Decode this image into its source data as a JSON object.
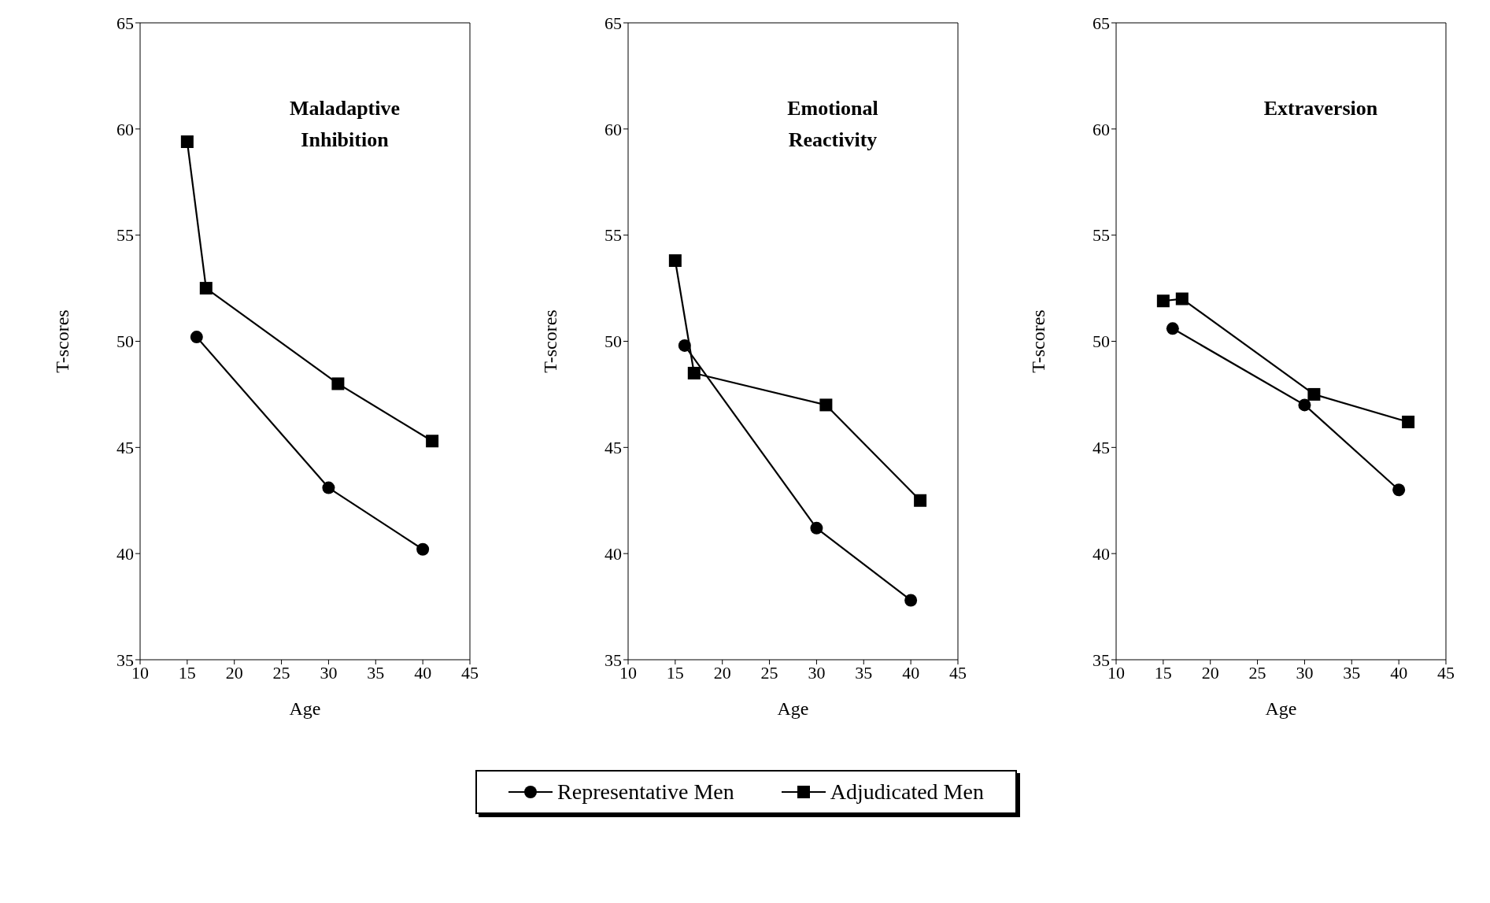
{
  "chart_data": [
    {
      "type": "line",
      "title": "Maladaptive Inhibition",
      "xlabel": "Age",
      "ylabel": "T-scores",
      "xlim": [
        10,
        45
      ],
      "xticks": [
        10,
        15,
        20,
        25,
        30,
        35,
        40,
        45
      ],
      "ylim": [
        35,
        65
      ],
      "yticks": [
        35,
        40,
        45,
        50,
        55,
        60,
        65
      ],
      "grid": false,
      "legend": "bottom",
      "series": [
        {
          "name": "Representative Men",
          "color": "#000000",
          "marker": "circle",
          "x": [
            16,
            30,
            40
          ],
          "values": [
            50.2,
            43.1,
            40.2
          ]
        },
        {
          "name": "Adjudicated Men",
          "color": "#000000",
          "marker": "square",
          "x": [
            15,
            17,
            31,
            41
          ],
          "values": [
            59.4,
            52.5,
            48.0,
            45.3
          ]
        }
      ]
    },
    {
      "type": "line",
      "title": "Emotional Reactivity",
      "xlabel": "Age",
      "ylabel": "T-scores",
      "xlim": [
        10,
        45
      ],
      "xticks": [
        10,
        15,
        20,
        25,
        30,
        35,
        40,
        45
      ],
      "ylim": [
        35,
        65
      ],
      "yticks": [
        35,
        40,
        45,
        50,
        55,
        60,
        65
      ],
      "grid": false,
      "series": [
        {
          "color": "#000000",
          "marker": "circle",
          "x": [
            16,
            30,
            40
          ],
          "values": [
            49.8,
            41.2,
            37.8
          ]
        },
        {
          "color": "#000000",
          "marker": "square",
          "x": [
            15,
            17,
            31,
            41
          ],
          "values": [
            53.8,
            48.5,
            47.0,
            42.5
          ]
        }
      ]
    },
    {
      "type": "line",
      "title": "Extraversion",
      "xlabel": "Age",
      "ylabel": "T-scores",
      "xlim": [
        10,
        45
      ],
      "xticks": [
        10,
        15,
        20,
        25,
        30,
        35,
        40,
        45
      ],
      "ylim": [
        35,
        65
      ],
      "yticks": [
        35,
        40,
        45,
        50,
        55,
        60,
        65
      ],
      "grid": false,
      "series": [
        {
          "color": "#000000",
          "marker": "circle",
          "x": [
            16,
            30,
            40
          ],
          "values": [
            50.6,
            47.0,
            43.0
          ]
        },
        {
          "color": "#000000",
          "marker": "square",
          "x": [
            15,
            17,
            31,
            41
          ],
          "values": [
            51.9,
            52.0,
            47.5,
            46.2
          ]
        }
      ]
    }
  ]
}
